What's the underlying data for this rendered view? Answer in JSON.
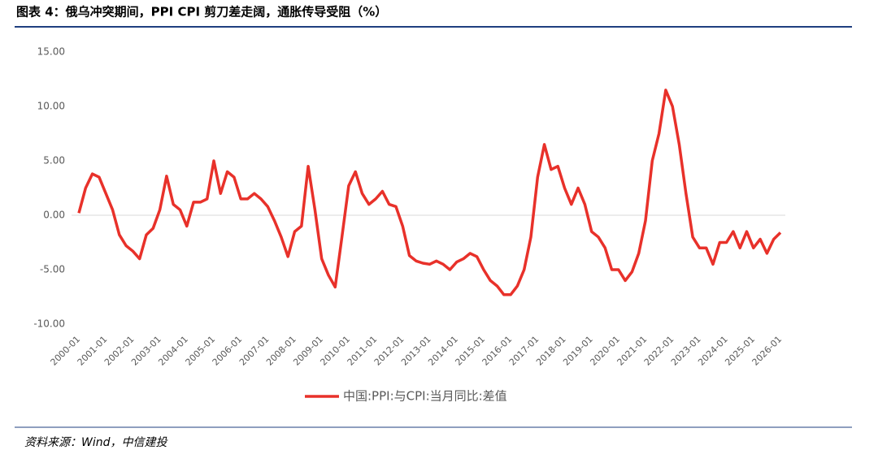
{
  "chart_data": {
    "type": "line",
    "title": "图表 4：俄乌冲突期间，PPI CPI 剪刀差走阔，通胀传导受阻（%）",
    "source": "资料来源：Wind，中信建投",
    "x": [
      "2000-01",
      "2000-04",
      "2000-07",
      "2000-10",
      "2001-01",
      "2001-04",
      "2001-07",
      "2001-10",
      "2002-01",
      "2002-04",
      "2002-07",
      "2002-10",
      "2003-01",
      "2003-04",
      "2003-07",
      "2003-10",
      "2004-01",
      "2004-04",
      "2004-07",
      "2004-10",
      "2005-01",
      "2005-04",
      "2005-07",
      "2005-10",
      "2006-01",
      "2006-04",
      "2006-07",
      "2006-10",
      "2007-01",
      "2007-04",
      "2007-07",
      "2007-10",
      "2008-01",
      "2008-04",
      "2008-07",
      "2008-10",
      "2009-01",
      "2009-04",
      "2009-07",
      "2009-10",
      "2010-01",
      "2010-04",
      "2010-07",
      "2010-10",
      "2011-01",
      "2011-04",
      "2011-07",
      "2011-10",
      "2012-01",
      "2012-04",
      "2012-07",
      "2012-10",
      "2013-01",
      "2013-04",
      "2013-07",
      "2013-10",
      "2014-01",
      "2014-04",
      "2014-07",
      "2014-10",
      "2015-01",
      "2015-04",
      "2015-07",
      "2015-10",
      "2016-01",
      "2016-04",
      "2016-07",
      "2016-10",
      "2017-01",
      "2017-04",
      "2017-07",
      "2017-10",
      "2018-01",
      "2018-04",
      "2018-07",
      "2018-10",
      "2019-01",
      "2019-04",
      "2019-07",
      "2019-10",
      "2020-01",
      "2020-04",
      "2020-07",
      "2020-10",
      "2021-01",
      "2021-04",
      "2021-07",
      "2021-10",
      "2022-01",
      "2022-04",
      "2022-07",
      "2022-10",
      "2023-01",
      "2023-04",
      "2023-07",
      "2023-10",
      "2024-01",
      "2024-04",
      "2024-07",
      "2024-10",
      "2025-01",
      "2025-04",
      "2025-07",
      "2025-10",
      "2026-01"
    ],
    "series": [
      {
        "name": "中国:PPI:与CPI:当月同比:差值",
        "color": "#e8312a",
        "values": [
          0.2,
          2.5,
          3.8,
          3.5,
          2.0,
          0.5,
          -1.8,
          -2.8,
          -3.3,
          -4.0,
          -1.8,
          -1.2,
          0.5,
          3.6,
          1.0,
          0.5,
          -1.0,
          1.2,
          1.2,
          1.5,
          5.0,
          2.0,
          4.0,
          3.5,
          1.5,
          1.5,
          2.0,
          1.5,
          0.8,
          -0.5,
          -2.0,
          -3.8,
          -1.5,
          -1.0,
          4.5,
          0.5,
          -4.0,
          -5.5,
          -6.6,
          -2.0,
          2.7,
          4.0,
          2.0,
          1.0,
          1.5,
          2.2,
          1.0,
          0.8,
          -1.0,
          -3.7,
          -4.2,
          -4.4,
          -4.5,
          -4.2,
          -4.5,
          -5.0,
          -4.3,
          -4.0,
          -3.5,
          -3.8,
          -5.0,
          -6.0,
          -6.5,
          -7.3,
          -7.3,
          -6.5,
          -5.0,
          -2.0,
          3.5,
          6.5,
          4.2,
          4.5,
          2.5,
          1.0,
          2.5,
          1.0,
          -1.5,
          -2.0,
          -3.0,
          -5.0,
          -5.0,
          -6.0,
          -5.2,
          -3.5,
          -0.5,
          5.0,
          7.5,
          11.5,
          10.0,
          6.5,
          2.0,
          -2.0,
          -3.0,
          -3.0,
          -4.5,
          -2.5,
          -2.5,
          -1.5,
          -3.0,
          -1.5,
          -3.0,
          -2.2,
          -3.5,
          -2.2,
          -1.6
        ]
      }
    ],
    "ylim": [
      -10,
      15
    ],
    "yticks": [
      {
        "value": -10,
        "label": "-10.00"
      },
      {
        "value": -5,
        "label": "-5.00"
      },
      {
        "value": 0,
        "label": "0.00"
      },
      {
        "value": 5,
        "label": "5.00"
      },
      {
        "value": 10,
        "label": "10.00"
      },
      {
        "value": 15,
        "label": "15.00"
      }
    ]
  }
}
